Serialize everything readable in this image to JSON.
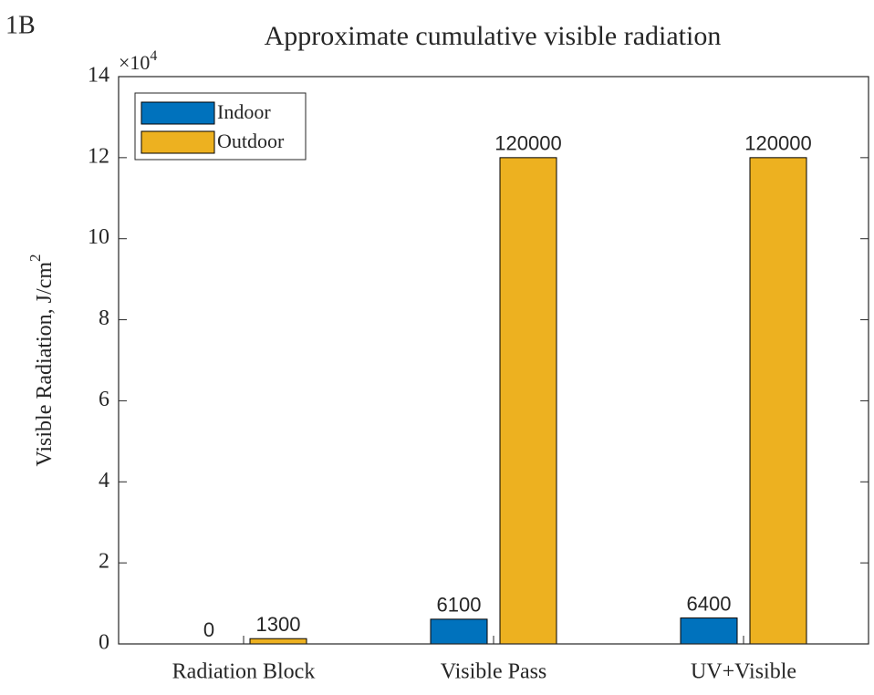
{
  "panel_label": "1B",
  "chart_data": {
    "type": "bar",
    "title": "Approximate cumulative visible radiation",
    "ylabel": "Visible Radiation, J/cm",
    "ylabel_superscript": "2",
    "y_exponent_base": "×10",
    "y_exponent": "4",
    "categories": [
      "Radiation Block",
      "Visible Pass",
      "UV+Visible"
    ],
    "series": [
      {
        "name": "Indoor",
        "color": "#0072bd",
        "values": [
          0,
          6100,
          6400
        ]
      },
      {
        "name": "Outdoor",
        "color": "#edb120",
        "values": [
          1300,
          120000,
          120000
        ]
      }
    ],
    "ylim": [
      0,
      140000
    ],
    "yticks": [
      0,
      {
        "value": 20000,
        "label": "2"
      },
      {
        "value": 40000,
        "label": "4"
      },
      {
        "value": 60000,
        "label": "6"
      },
      {
        "value": 80000,
        "label": "8"
      },
      {
        "value": 100000,
        "label": "10"
      },
      {
        "value": 120000,
        "label": "12"
      },
      {
        "value": 140000,
        "label": "14"
      }
    ],
    "legend": "upper left",
    "grid": false
  }
}
